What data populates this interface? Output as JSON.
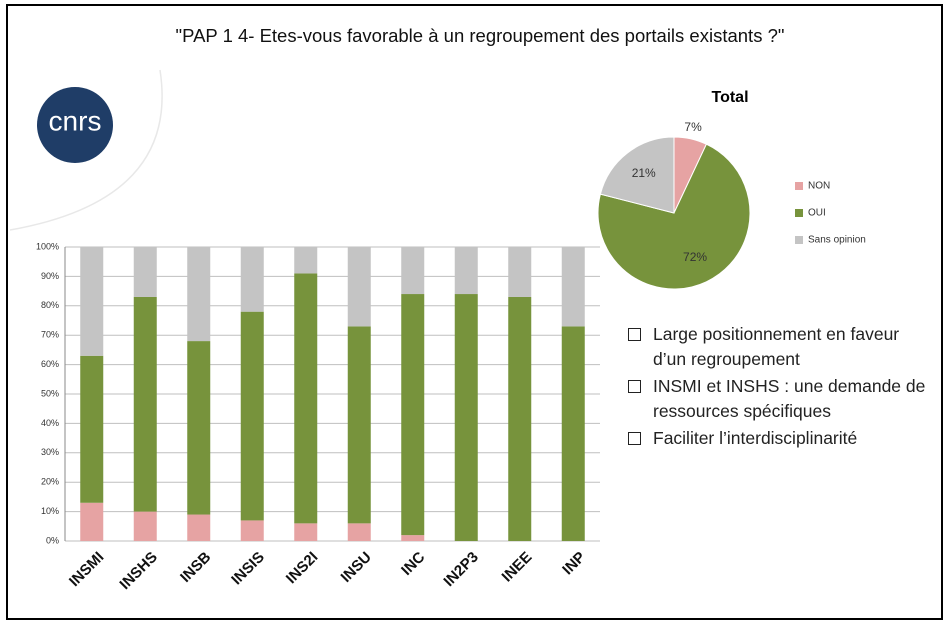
{
  "title": "\"PAP 1 4- Etes-vous favorable à un regroupement des portails existants ?\"",
  "logo": "cnrs",
  "bullets": [
    "Large positionnement en faveur d’un regroupement",
    "INSMI et INSHS : une demande de ressources spécifiques",
    "Faciliter l’interdisciplinarité"
  ],
  "chart_data": [
    {
      "type": "bar",
      "categories": [
        "INSMI",
        "INSHS",
        "INSB",
        "INSIS",
        "INS2I",
        "INSU",
        "INC",
        "IN2P3",
        "INEE",
        "INP"
      ],
      "series": [
        {
          "color": "#e6a3a3",
          "values": [
            13,
            10,
            9,
            7,
            6,
            6,
            2,
            0,
            0,
            0
          ]
        },
        {
          "color": "#77933c",
          "values": [
            50,
            73,
            59,
            71,
            85,
            67,
            82,
            84,
            83,
            73
          ]
        },
        {
          "color": "#c4c4c4",
          "values": [
            37,
            17,
            32,
            22,
            9,
            27,
            16,
            16,
            17,
            27
          ]
        }
      ],
      "ylim": [
        0,
        100
      ],
      "yticks": [
        {
          "value": 0,
          "label": "0%"
        },
        {
          "value": 10,
          "label": "10%"
        },
        {
          "value": 20,
          "label": "20%"
        },
        {
          "value": 30,
          "label": "30%"
        },
        {
          "value": 40,
          "label": "40%"
        },
        {
          "value": 50,
          "label": "50%"
        },
        {
          "value": 60,
          "label": "60%"
        },
        {
          "value": 70,
          "label": "70%"
        },
        {
          "value": 80,
          "label": "80%"
        },
        {
          "value": 90,
          "label": "90%"
        },
        {
          "value": 100,
          "label": "100%"
        }
      ],
      "grid": true
    },
    {
      "type": "pie",
      "title": "Total",
      "categories": [
        "NON",
        "OUI",
        "Sans opinion"
      ],
      "values": [
        7,
        72,
        21
      ],
      "value_labels": [
        "7%",
        "72%",
        "21%"
      ],
      "colors": [
        "#e6a3a3",
        "#77933c",
        "#c4c4c4"
      ]
    }
  ]
}
